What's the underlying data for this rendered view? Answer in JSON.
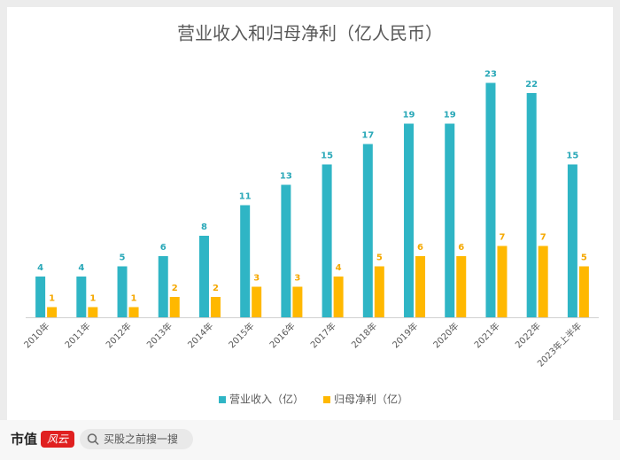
{
  "chart_data": {
    "type": "bar",
    "title": "营业收入和归母净利（亿人民币）",
    "categories": [
      "2010年",
      "2011年",
      "2012年",
      "2013年",
      "2014年",
      "2015年",
      "2016年",
      "2017年",
      "2018年",
      "2019年",
      "2020年",
      "2021年",
      "2022年",
      "2023年上半年"
    ],
    "series": [
      {
        "name": "营业收入（亿）",
        "color": "#2fb5c5",
        "values": [
          4,
          4,
          5,
          6,
          8,
          11,
          13,
          15,
          17,
          19,
          19,
          23,
          22,
          15
        ]
      },
      {
        "name": "归母净利（亿）",
        "color": "#ffb800",
        "values": [
          1,
          1,
          1,
          2,
          2,
          3,
          3,
          4,
          5,
          6,
          6,
          7,
          7,
          5
        ]
      }
    ],
    "ylim": [
      0,
      24
    ],
    "legend": "bottom"
  },
  "footer": {
    "brand": "市值",
    "brand_mark": "风云",
    "search_placeholder": "买股之前搜一搜"
  }
}
